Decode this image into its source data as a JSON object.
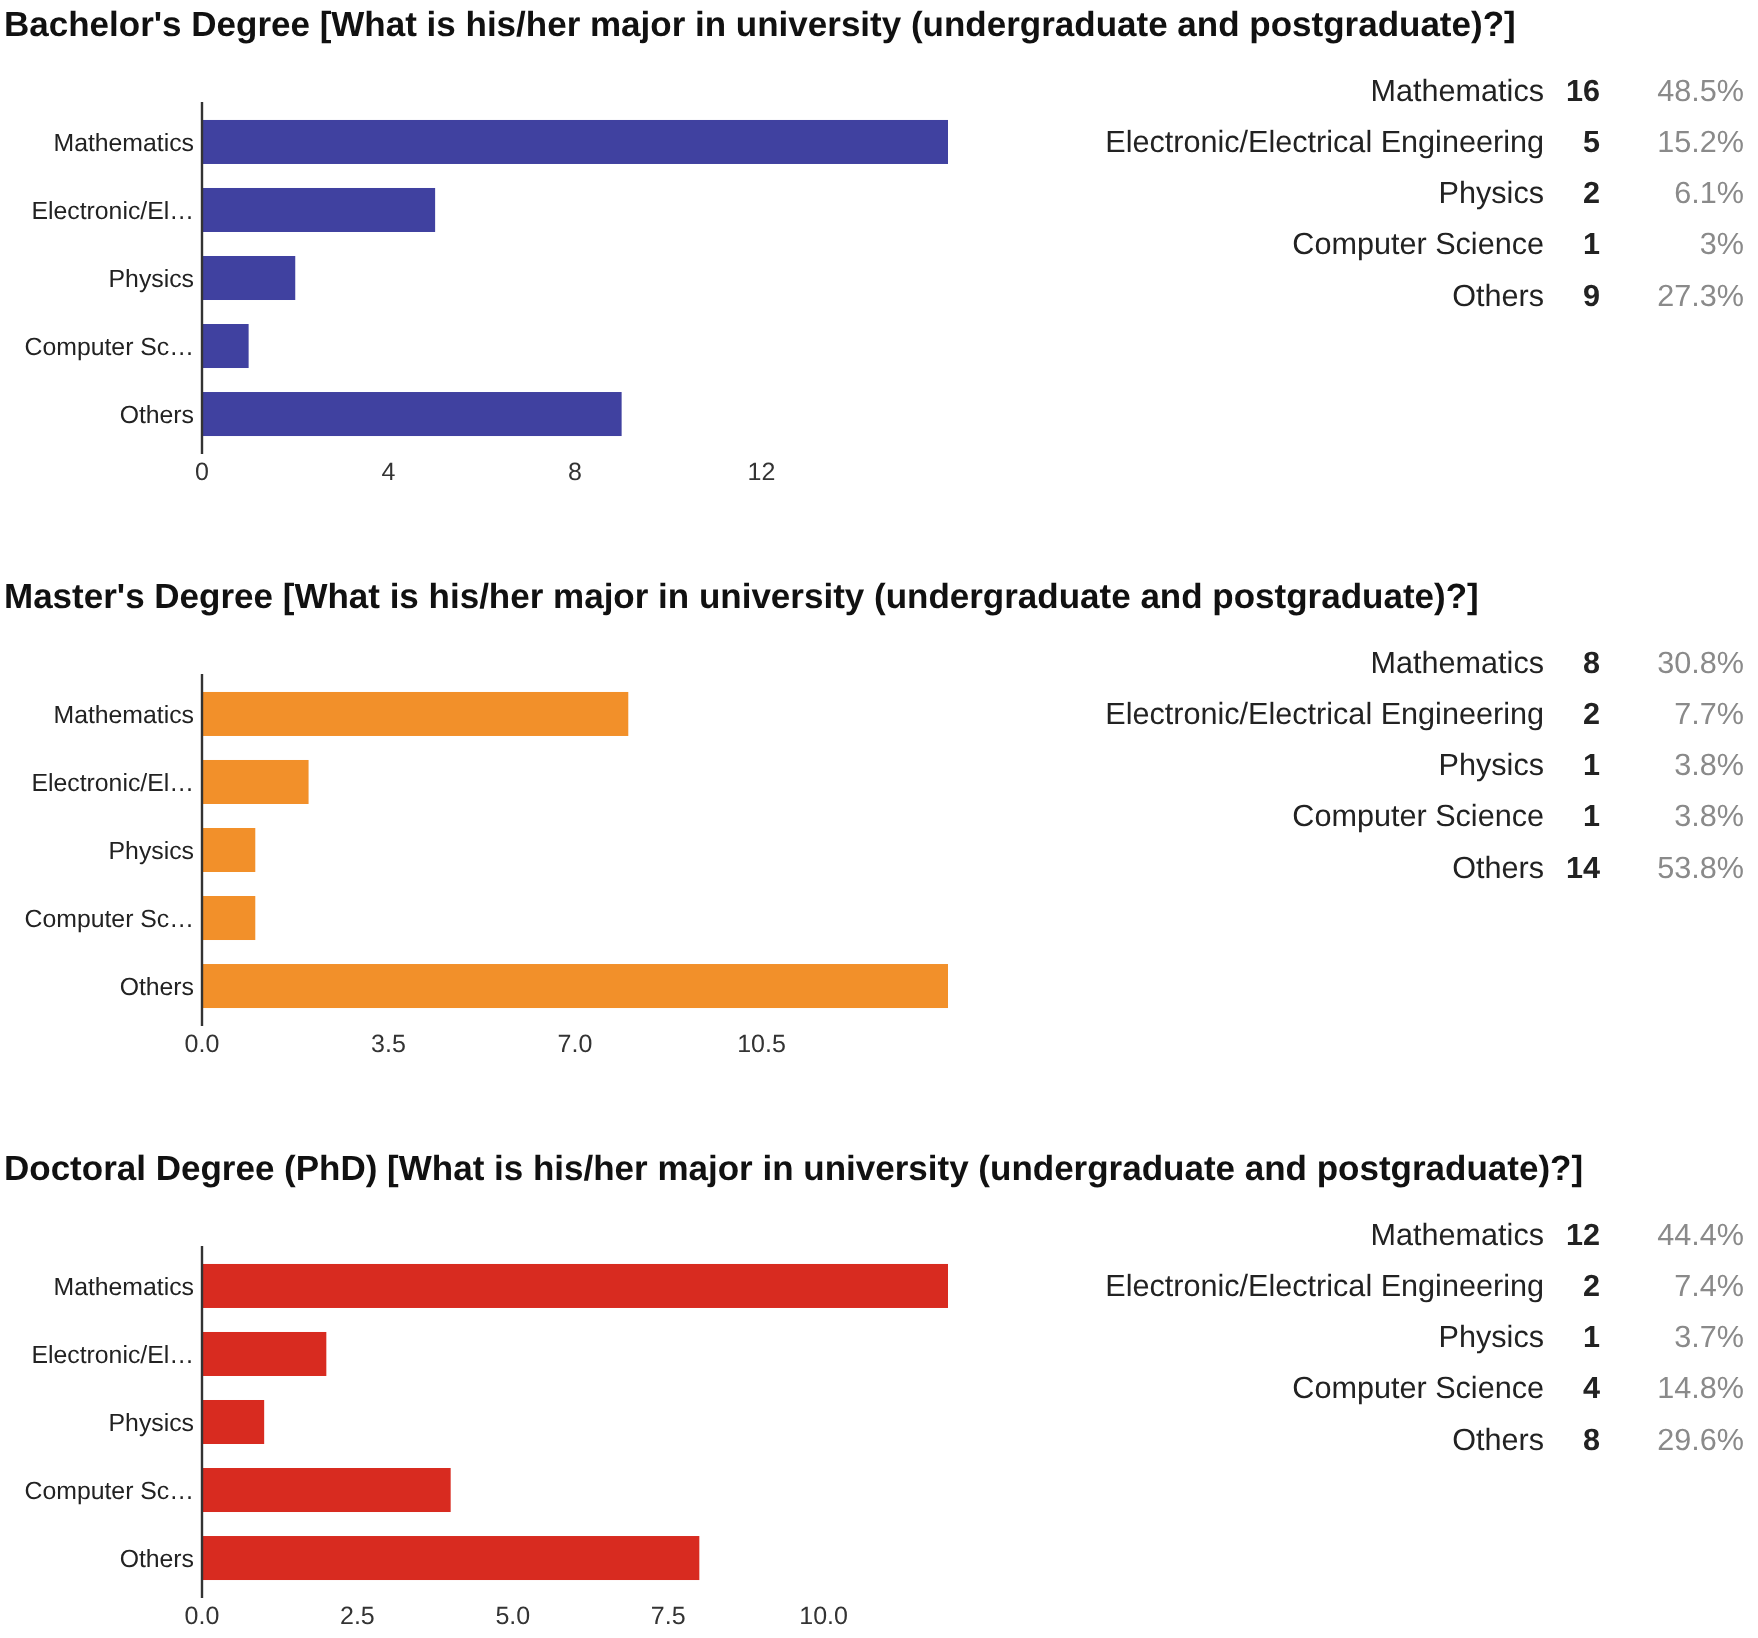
{
  "chart_data": [
    {
      "type": "bar",
      "orientation": "horizontal",
      "title": "Bachelor's Degree [What is his/her major in university (undergraduate and postgraduate)?]",
      "categories": [
        "Mathematics",
        "Electronic/El…",
        "Physics",
        "Computer Sc…",
        "Others"
      ],
      "values": [
        16,
        5,
        2,
        1,
        9
      ],
      "color": "#4041a0",
      "xlim": [
        0,
        16
      ],
      "xticks": [
        0,
        4,
        8,
        12
      ]
    },
    {
      "type": "other",
      "categories": [
        "Mathematics",
        "Electronic/Electrical Engineering",
        "Physics",
        "Computer Science",
        "Others"
      ],
      "series": [
        {
          "color": "#222222",
          "values": [
            16,
            5,
            2,
            1,
            9
          ]
        },
        {
          "color": "#8a8a8a",
          "values": [
            48.5,
            15.2,
            6.1,
            3,
            27.3
          ],
          "value_labels": [
            "48.5%",
            "15.2%",
            "6.1%",
            "3%",
            "27.3%"
          ]
        }
      ],
      "data_labels": true
    },
    {
      "type": "bar",
      "orientation": "horizontal",
      "title": "Master's Degree [What is his/her major in university (undergraduate and postgraduate)?]",
      "categories": [
        "Mathematics",
        "Electronic/El…",
        "Physics",
        "Computer Sc…",
        "Others"
      ],
      "values": [
        8,
        2,
        1,
        1,
        14
      ],
      "color": "#f2902a",
      "xlim": [
        0,
        14
      ],
      "xticks": [
        {
          "value": 0,
          "label": "0.0"
        },
        3.5,
        {
          "value": 7,
          "label": "7.0"
        },
        10.5
      ]
    },
    {
      "type": "other",
      "categories": [
        "Mathematics",
        "Electronic/Electrical Engineering",
        "Physics",
        "Computer Science",
        "Others"
      ],
      "series": [
        {
          "color": "#222222",
          "values": [
            8,
            2,
            1,
            1,
            14
          ]
        },
        {
          "color": "#8a8a8a",
          "values": [
            30.8,
            7.7,
            3.8,
            3.8,
            53.8
          ],
          "value_labels": [
            "30.8%",
            "7.7%",
            "3.8%",
            "3.8%",
            "53.8%"
          ]
        }
      ],
      "data_labels": true
    },
    {
      "type": "bar",
      "orientation": "horizontal",
      "title": "Doctoral Degree (PhD) [What is his/her major in university (undergraduate and postgraduate)?]",
      "categories": [
        "Mathematics",
        "Electronic/El…",
        "Physics",
        "Computer Sc…",
        "Others"
      ],
      "values": [
        12,
        2,
        1,
        4,
        8
      ],
      "color": "#d82b20",
      "xlim": [
        0,
        12
      ],
      "xticks": [
        {
          "value": 0,
          "label": "0.0"
        },
        2.5,
        {
          "value": 5,
          "label": "5.0"
        },
        7.5,
        {
          "value": 10,
          "label": "10.0"
        }
      ]
    },
    {
      "type": "other",
      "categories": [
        "Mathematics",
        "Electronic/Electrical Engineering",
        "Physics",
        "Computer Science",
        "Others"
      ],
      "series": [
        {
          "color": "#222222",
          "values": [
            12,
            2,
            1,
            4,
            8
          ]
        },
        {
          "color": "#8a8a8a",
          "values": [
            44.4,
            7.4,
            3.7,
            14.8,
            29.6
          ],
          "value_labels": [
            "44.4%",
            "7.4%",
            "3.7%",
            "14.8%",
            "29.6%"
          ]
        }
      ],
      "data_labels": true
    }
  ]
}
